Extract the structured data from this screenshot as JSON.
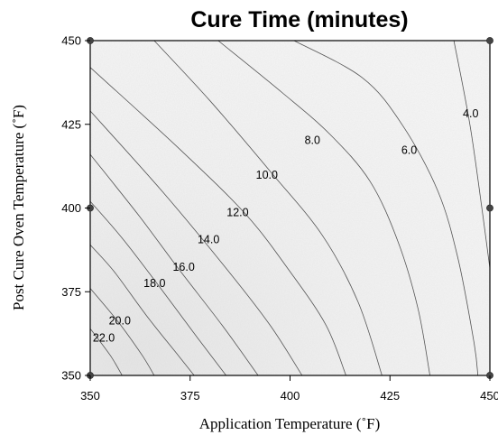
{
  "chart_data": {
    "type": "contour",
    "title": "Cure Time (minutes)",
    "xlabel": "Application Temperature (˚F)",
    "ylabel": "Post Cure Oven Temperature (˚F)",
    "xlim": [
      350,
      450
    ],
    "ylim": [
      350,
      450
    ],
    "x_ticks": [
      "350",
      "375",
      "400",
      "425",
      "450"
    ],
    "y_ticks": [
      "350",
      "375",
      "400",
      "425",
      "450"
    ],
    "design_points": [
      {
        "x": 350,
        "y": 350
      },
      {
        "x": 350,
        "y": 400
      },
      {
        "x": 350,
        "y": 450
      },
      {
        "x": 450,
        "y": 350
      },
      {
        "x": 450,
        "y": 400
      },
      {
        "x": 450,
        "y": 450
      }
    ],
    "contours": [
      {
        "level": 4,
        "label": "4.0",
        "points": [
          [
            441,
            450
          ],
          [
            445,
            425
          ],
          [
            448,
            400
          ],
          [
            450,
            382
          ]
        ],
        "label_at": [
          445.2,
          428.2
        ]
      },
      {
        "level": 6,
        "label": "6.0",
        "points": [
          [
            401,
            450
          ],
          [
            418,
            439
          ],
          [
            428,
            425
          ],
          [
            437,
            405
          ],
          [
            442,
            385
          ],
          [
            446,
            360
          ],
          [
            447,
            350
          ]
        ],
        "label_at": [
          429.8,
          417.3
        ]
      },
      {
        "level": 8,
        "label": "8.0",
        "points": [
          [
            382,
            450
          ],
          [
            398,
            434.5
          ],
          [
            410,
            422
          ],
          [
            420,
            408
          ],
          [
            427,
            390
          ],
          [
            432,
            370
          ],
          [
            435,
            350
          ]
        ],
        "label_at": [
          405.6,
          420.2
        ]
      },
      {
        "level": 10,
        "label": "10.0",
        "points": [
          [
            366,
            450
          ],
          [
            380,
            432
          ],
          [
            395,
            411
          ],
          [
            408,
            392
          ],
          [
            417,
            372
          ],
          [
            423,
            350
          ]
        ],
        "label_at": [
          394.2,
          409.9
        ]
      },
      {
        "level": 12,
        "label": "12.0",
        "points": [
          [
            350,
            442
          ],
          [
            372,
            418
          ],
          [
            389,
            398
          ],
          [
            400,
            381
          ],
          [
            409,
            365
          ],
          [
            414,
            350
          ]
        ],
        "label_at": [
          386.9,
          398.6
        ]
      },
      {
        "level": 14,
        "label": "14.0",
        "points": [
          [
            350,
            429
          ],
          [
            368,
            405
          ],
          [
            384,
            382
          ],
          [
            395,
            365
          ],
          [
            403,
            350
          ]
        ],
        "label_at": [
          379.6,
          390.6
        ]
      },
      {
        "level": 16,
        "label": "16.0",
        "points": [
          [
            350,
            416
          ],
          [
            362,
            398
          ],
          [
            372,
            382
          ],
          [
            383,
            365
          ],
          [
            392,
            350
          ]
        ],
        "label_at": [
          373.4,
          382.4
        ]
      },
      {
        "level": 18,
        "label": "18.0",
        "points": [
          [
            350,
            402
          ],
          [
            358,
            391
          ],
          [
            367,
            377
          ],
          [
            377,
            361
          ],
          [
            384,
            350
          ]
        ],
        "label_at": [
          366.1,
          377.5
        ]
      },
      {
        "level": 20,
        "label": "20.0",
        "points": [
          [
            350,
            389
          ],
          [
            356,
            381
          ],
          [
            364,
            368
          ],
          [
            372,
            356
          ],
          [
            376,
            350
          ]
        ],
        "label_at": [
          357.4,
          366.3
        ]
      },
      {
        "level": 22,
        "label": "22.0",
        "points": [
          [
            350,
            376
          ],
          [
            357,
            366
          ],
          [
            363,
            356
          ],
          [
            366,
            350
          ]
        ],
        "label_at": [
          353.4,
          361.2
        ]
      },
      {
        "level": 24,
        "label": "",
        "points": [
          [
            350,
            364
          ],
          [
            355,
            356
          ],
          [
            358,
            350
          ]
        ],
        "label_at": null
      }
    ]
  }
}
